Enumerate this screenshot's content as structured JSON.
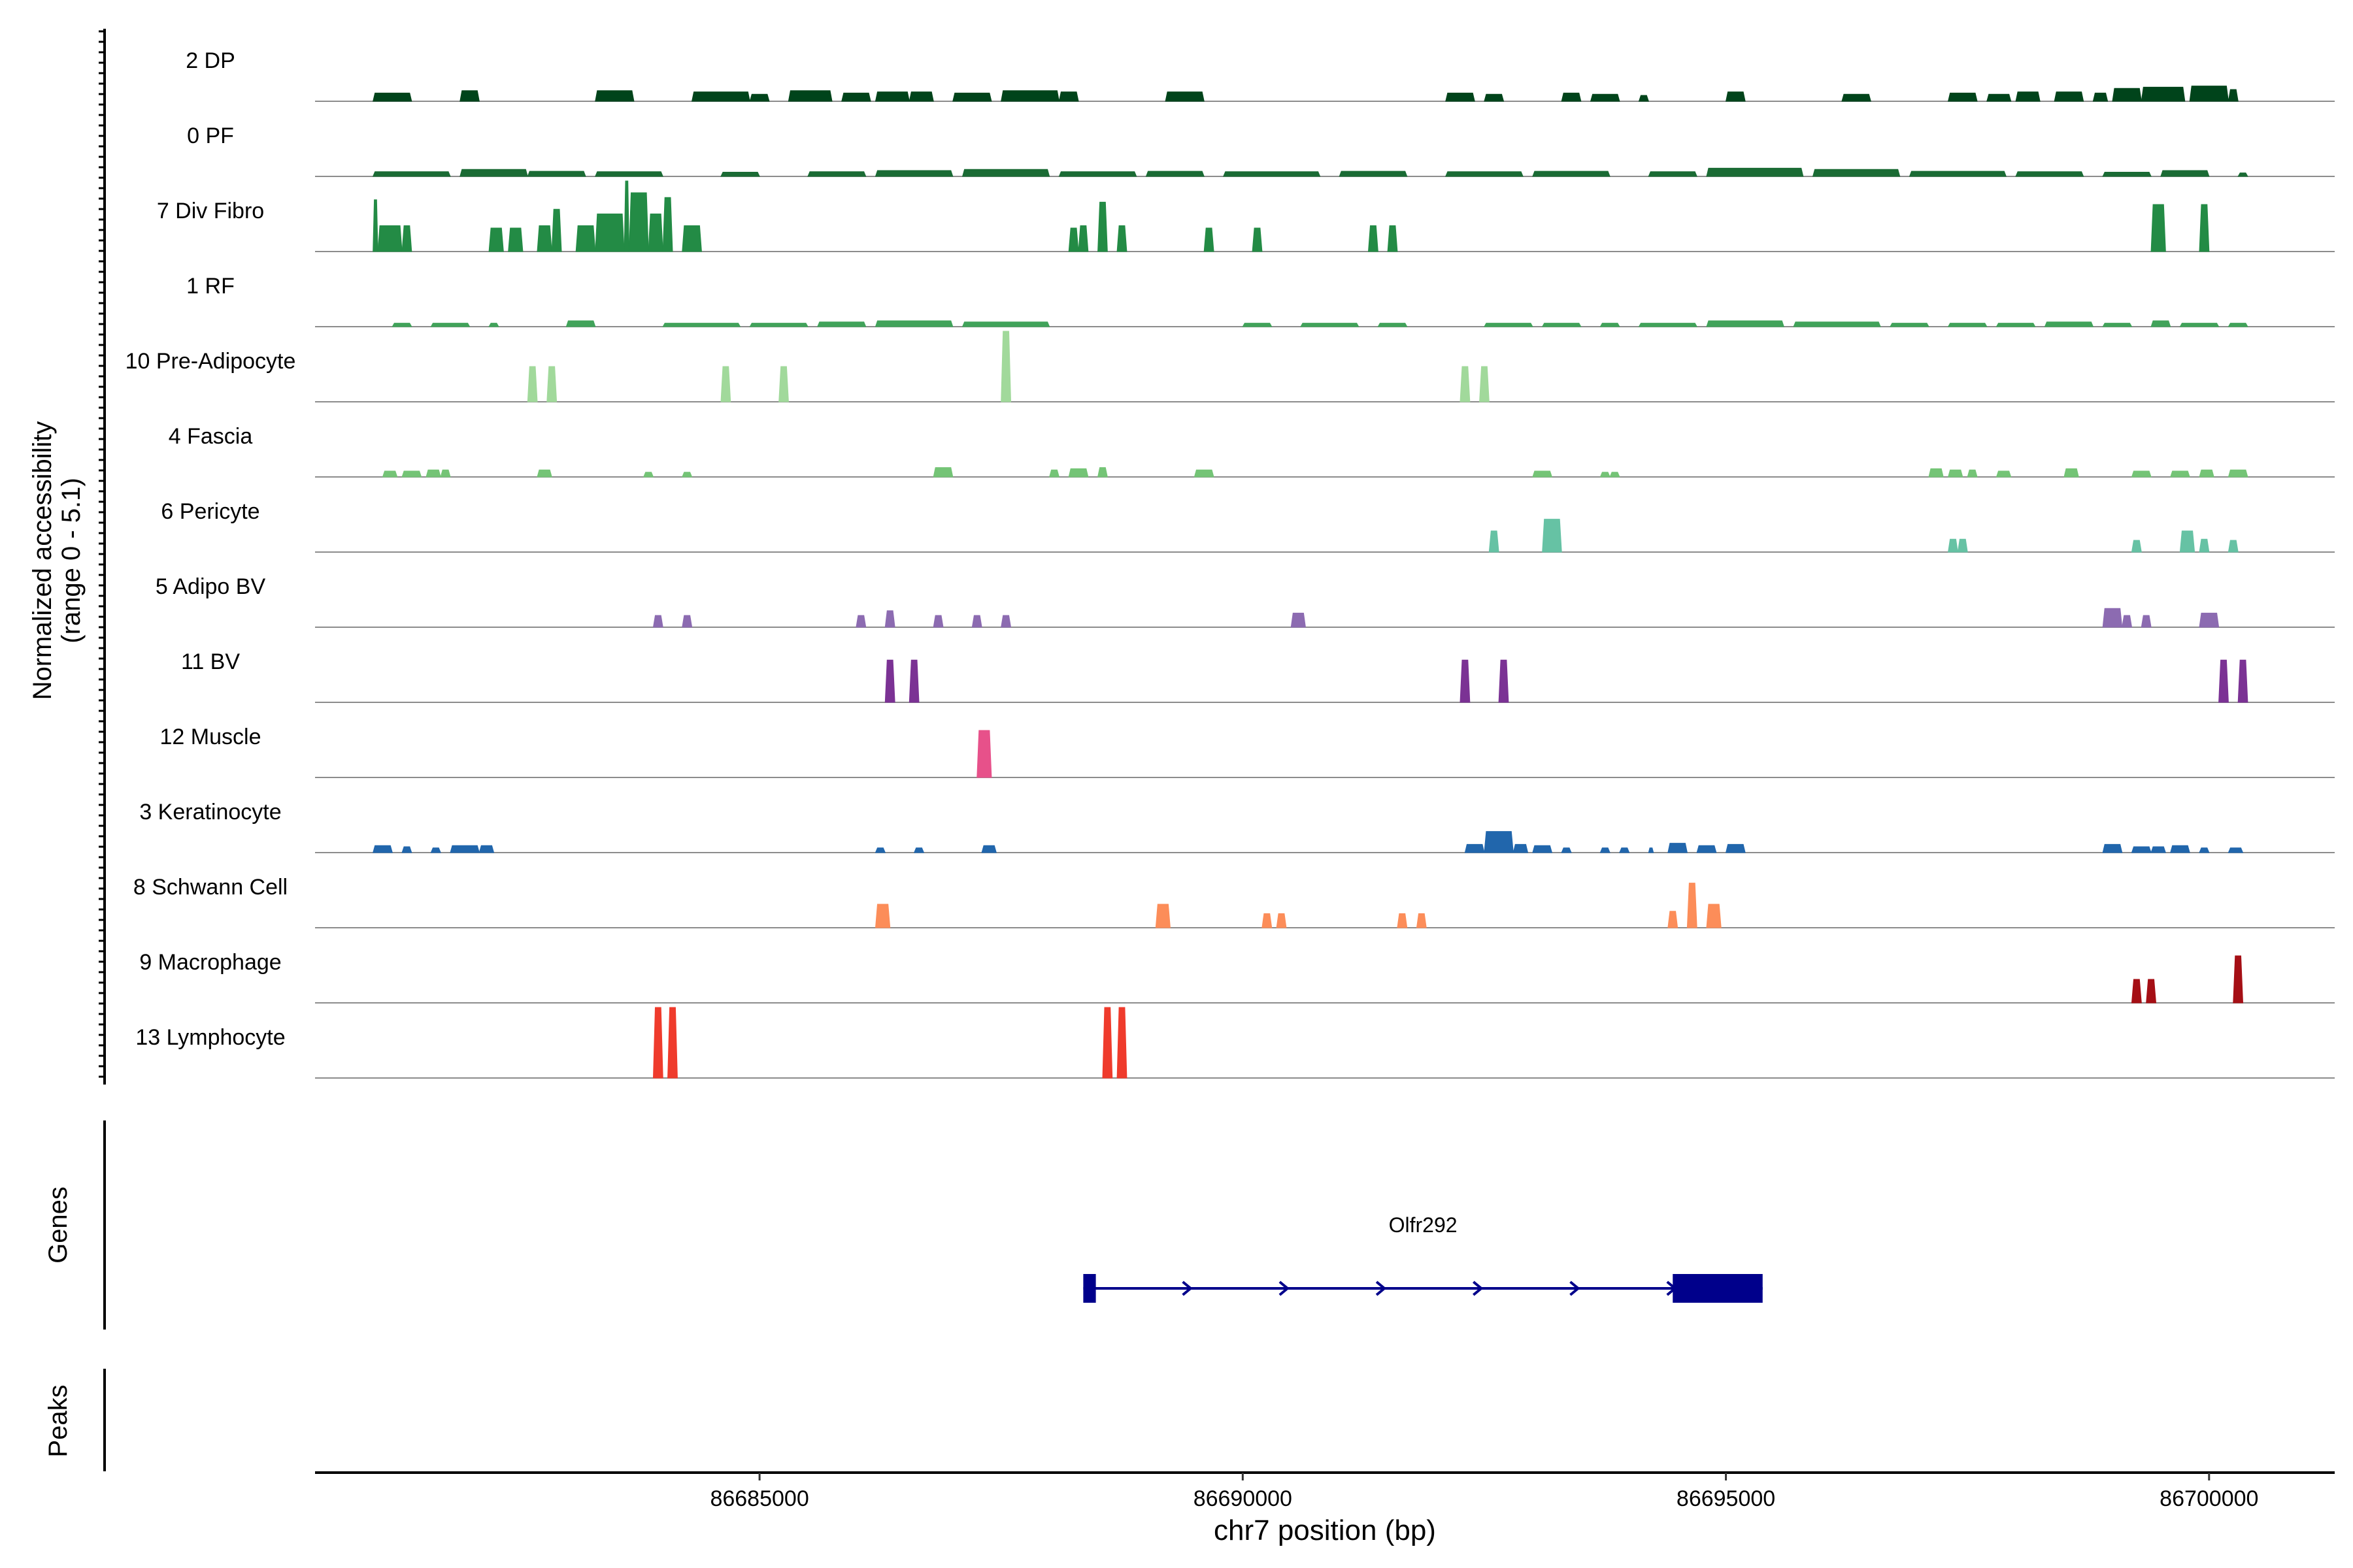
{
  "chart_data": {
    "type": "area",
    "title": "",
    "coverage_ylabel": "Normalized accessibility",
    "coverage_range_label": "(range 0 - 5.1)",
    "ylim": [
      0,
      5.1
    ],
    "xlabel": "chr7 position (bp)",
    "xlim": [
      86680400,
      86701300
    ],
    "x_ticks": [
      86685000,
      86690000,
      86695000,
      86700000
    ],
    "x_tick_labels": [
      "86685000",
      "86690000",
      "86695000",
      "86700000"
    ],
    "genes_label": "Genes",
    "peaks_label": "Peaks",
    "gene": {
      "name": "Olfr292",
      "strand": "+",
      "start": 86688350,
      "end": 86695380,
      "exons": [
        [
          86688350,
          86688480
        ],
        [
          86694450,
          86695380
        ]
      ]
    },
    "tracks": [
      {
        "name": "2 DP",
        "color": "#00441b",
        "segments": [
          [
            86681000,
            86681400,
            0.35
          ],
          [
            86681900,
            86682100,
            0.45
          ],
          [
            86683300,
            86683700,
            0.45
          ],
          [
            86684300,
            86684900,
            0.4
          ],
          [
            86684900,
            86685100,
            0.3
          ],
          [
            86685300,
            86685750,
            0.45
          ],
          [
            86685850,
            86686150,
            0.35
          ],
          [
            86686200,
            86686550,
            0.4
          ],
          [
            86686550,
            86686800,
            0.4
          ],
          [
            86687000,
            86687400,
            0.35
          ],
          [
            86687500,
            86688100,
            0.45
          ],
          [
            86688100,
            86688300,
            0.4
          ],
          [
            86689200,
            86689600,
            0.4
          ],
          [
            86692100,
            86692400,
            0.35
          ],
          [
            86692500,
            86692700,
            0.3
          ],
          [
            86693300,
            86693500,
            0.35
          ],
          [
            86693600,
            86693900,
            0.3
          ],
          [
            86694100,
            86694200,
            0.25
          ],
          [
            86695000,
            86695200,
            0.4
          ],
          [
            86696200,
            86696500,
            0.3
          ],
          [
            86697300,
            86697600,
            0.35
          ],
          [
            86697700,
            86697950,
            0.3
          ],
          [
            86698000,
            86698250,
            0.4
          ],
          [
            86698400,
            86698700,
            0.4
          ],
          [
            86698800,
            86698950,
            0.35
          ],
          [
            86699000,
            86699300,
            0.55
          ],
          [
            86699300,
            86699750,
            0.6
          ],
          [
            86699800,
            86700200,
            0.65
          ],
          [
            86700200,
            86700300,
            0.5
          ]
        ]
      },
      {
        "name": "0 PF",
        "color": "#1a6b34",
        "segments": [
          [
            86681000,
            86681800,
            0.2
          ],
          [
            86681900,
            86682600,
            0.3
          ],
          [
            86682600,
            86683200,
            0.22
          ],
          [
            86683300,
            86684000,
            0.2
          ],
          [
            86684600,
            86685000,
            0.18
          ],
          [
            86685500,
            86686100,
            0.2
          ],
          [
            86686200,
            86687000,
            0.25
          ],
          [
            86687100,
            86688000,
            0.3
          ],
          [
            86688100,
            86688900,
            0.2
          ],
          [
            86689000,
            86689600,
            0.22
          ],
          [
            86689800,
            86690800,
            0.2
          ],
          [
            86691000,
            86691700,
            0.22
          ],
          [
            86692100,
            86692900,
            0.2
          ],
          [
            86693000,
            86693800,
            0.22
          ],
          [
            86694200,
            86694700,
            0.2
          ],
          [
            86694800,
            86695800,
            0.35
          ],
          [
            86695900,
            86696800,
            0.3
          ],
          [
            86696900,
            86697900,
            0.22
          ],
          [
            86698000,
            86698700,
            0.2
          ],
          [
            86698900,
            86699400,
            0.18
          ],
          [
            86699500,
            86700000,
            0.25
          ],
          [
            86700300,
            86700400,
            0.15
          ]
        ]
      },
      {
        "name": "7 Div Fibro",
        "color": "#238b45",
        "segments": [
          [
            86681000,
            86681050,
            2.2
          ],
          [
            86681050,
            86681300,
            1.1
          ],
          [
            86681300,
            86681400,
            1.1
          ],
          [
            86682200,
            86682350,
            1.0
          ],
          [
            86682400,
            86682550,
            1.0
          ],
          [
            86682700,
            86682850,
            1.1
          ],
          [
            86682850,
            86682950,
            1.8
          ],
          [
            86683100,
            86683300,
            1.1
          ],
          [
            86683300,
            86683600,
            1.6
          ],
          [
            86683600,
            86683650,
            3.2
          ],
          [
            86683650,
            86683850,
            2.5
          ],
          [
            86683850,
            86684000,
            1.6
          ],
          [
            86684000,
            86684100,
            2.3
          ],
          [
            86684200,
            86684400,
            1.1
          ],
          [
            86688200,
            86688300,
            1.0
          ],
          [
            86688300,
            86688400,
            1.1
          ],
          [
            86688500,
            86688600,
            2.1
          ],
          [
            86688700,
            86688800,
            1.1
          ],
          [
            86689600,
            86689700,
            1.0
          ],
          [
            86690100,
            86690200,
            1.0
          ],
          [
            86691300,
            86691400,
            1.1
          ],
          [
            86691500,
            86691600,
            1.1
          ],
          [
            86699400,
            86699550,
            2.0
          ],
          [
            86699900,
            86700000,
            2.0
          ]
        ]
      },
      {
        "name": "1 RF",
        "color": "#41a35a",
        "segments": [
          [
            86681200,
            86681400,
            0.15
          ],
          [
            86681600,
            86682000,
            0.15
          ],
          [
            86682200,
            86682300,
            0.15
          ],
          [
            86683000,
            86683300,
            0.25
          ],
          [
            86684000,
            86684800,
            0.15
          ],
          [
            86684900,
            86685500,
            0.15
          ],
          [
            86685600,
            86686100,
            0.2
          ],
          [
            86686200,
            86687000,
            0.25
          ],
          [
            86687100,
            86688000,
            0.2
          ],
          [
            86690000,
            86690300,
            0.15
          ],
          [
            86690600,
            86691200,
            0.15
          ],
          [
            86691400,
            86691700,
            0.15
          ],
          [
            86692500,
            86693000,
            0.15
          ],
          [
            86693100,
            86693500,
            0.15
          ],
          [
            86693700,
            86693900,
            0.15
          ],
          [
            86694100,
            86694700,
            0.15
          ],
          [
            86694800,
            86695600,
            0.25
          ],
          [
            86695700,
            86696600,
            0.2
          ],
          [
            86696700,
            86697100,
            0.15
          ],
          [
            86697300,
            86697700,
            0.15
          ],
          [
            86697800,
            86698200,
            0.15
          ],
          [
            86698300,
            86698800,
            0.2
          ],
          [
            86698900,
            86699200,
            0.15
          ],
          [
            86699400,
            86699600,
            0.25
          ],
          [
            86699700,
            86700100,
            0.15
          ],
          [
            86700200,
            86700400,
            0.15
          ]
        ]
      },
      {
        "name": "10 Pre-Adipocyte",
        "color": "#a1d99b",
        "segments": [
          [
            86682600,
            86682700,
            1.5
          ],
          [
            86682800,
            86682900,
            1.5
          ],
          [
            86684600,
            86684700,
            1.5
          ],
          [
            86685200,
            86685300,
            1.5
          ],
          [
            86687500,
            86687600,
            3.0
          ],
          [
            86692250,
            86692350,
            1.5
          ],
          [
            86692450,
            86692550,
            1.5
          ]
        ]
      },
      {
        "name": "4 Fascia",
        "color": "#74c476",
        "segments": [
          [
            86681100,
            86681250,
            0.25
          ],
          [
            86681300,
            86681500,
            0.25
          ],
          [
            86681550,
            86681700,
            0.3
          ],
          [
            86681700,
            86681800,
            0.3
          ],
          [
            86682700,
            86682850,
            0.3
          ],
          [
            86683800,
            86683900,
            0.2
          ],
          [
            86684200,
            86684300,
            0.2
          ],
          [
            86686800,
            86687000,
            0.4
          ],
          [
            86688000,
            86688100,
            0.3
          ],
          [
            86688200,
            86688400,
            0.35
          ],
          [
            86688500,
            86688600,
            0.4
          ],
          [
            86689500,
            86689700,
            0.3
          ],
          [
            86693000,
            86693200,
            0.25
          ],
          [
            86693700,
            86693800,
            0.2
          ],
          [
            86693800,
            86693900,
            0.2
          ],
          [
            86697100,
            86697250,
            0.35
          ],
          [
            86697300,
            86697450,
            0.3
          ],
          [
            86697500,
            86697600,
            0.3
          ],
          [
            86697800,
            86697950,
            0.25
          ],
          [
            86698500,
            86698650,
            0.35
          ],
          [
            86699200,
            86699400,
            0.25
          ],
          [
            86699600,
            86699800,
            0.25
          ],
          [
            86699900,
            86700050,
            0.3
          ],
          [
            86700200,
            86700400,
            0.3
          ]
        ]
      },
      {
        "name": "6 Pericyte",
        "color": "#66c2a4",
        "segments": [
          [
            86692550,
            86692650,
            0.9
          ],
          [
            86693100,
            86693300,
            1.4
          ],
          [
            86697300,
            86697400,
            0.55
          ],
          [
            86697400,
            86697500,
            0.55
          ],
          [
            86699200,
            86699300,
            0.5
          ],
          [
            86699700,
            86699850,
            0.9
          ],
          [
            86699900,
            86700000,
            0.55
          ],
          [
            86700200,
            86700300,
            0.5
          ]
        ]
      },
      {
        "name": "5 Adipo BV",
        "color": "#8c6bb1",
        "segments": [
          [
            86683900,
            86684000,
            0.5
          ],
          [
            86684200,
            86684300,
            0.5
          ],
          [
            86686000,
            86686100,
            0.5
          ],
          [
            86686300,
            86686400,
            0.7
          ],
          [
            86686800,
            86686900,
            0.5
          ],
          [
            86687200,
            86687300,
            0.5
          ],
          [
            86687500,
            86687600,
            0.5
          ],
          [
            86690500,
            86690650,
            0.6
          ],
          [
            86698900,
            86699100,
            0.8
          ],
          [
            86699100,
            86699200,
            0.5
          ],
          [
            86699300,
            86699400,
            0.5
          ],
          [
            86699900,
            86700100,
            0.6
          ]
        ]
      },
      {
        "name": "11 BV",
        "color": "#7b3294",
        "segments": [
          [
            86686300,
            86686400,
            1.8
          ],
          [
            86686550,
            86686650,
            1.8
          ],
          [
            86692250,
            86692350,
            1.8
          ],
          [
            86692650,
            86692750,
            1.8
          ],
          [
            86700100,
            86700200,
            1.8
          ],
          [
            86700300,
            86700400,
            1.8
          ]
        ]
      },
      {
        "name": "12 Muscle",
        "color": "#e7518a",
        "segments": [
          [
            86687250,
            86687400,
            2.0
          ]
        ]
      },
      {
        "name": "3 Keratinocyte",
        "color": "#2166ac",
        "segments": [
          [
            86681000,
            86681200,
            0.3
          ],
          [
            86681300,
            86681400,
            0.25
          ],
          [
            86681600,
            86681700,
            0.2
          ],
          [
            86681800,
            86682100,
            0.3
          ],
          [
            86682100,
            86682250,
            0.3
          ],
          [
            86686200,
            86686300,
            0.2
          ],
          [
            86686600,
            86686700,
            0.2
          ],
          [
            86687300,
            86687450,
            0.3
          ],
          [
            86692300,
            86692500,
            0.35
          ],
          [
            86692500,
            86692800,
            0.9
          ],
          [
            86692800,
            86692950,
            0.35
          ],
          [
            86693000,
            86693200,
            0.3
          ],
          [
            86693300,
            86693400,
            0.2
          ],
          [
            86693700,
            86693800,
            0.2
          ],
          [
            86693900,
            86694000,
            0.2
          ],
          [
            86694200,
            86694250,
            0.2
          ],
          [
            86694400,
            86694600,
            0.4
          ],
          [
            86694700,
            86694900,
            0.3
          ],
          [
            86695000,
            86695200,
            0.35
          ],
          [
            86698900,
            86699100,
            0.35
          ],
          [
            86699200,
            86699400,
            0.25
          ],
          [
            86699400,
            86699550,
            0.25
          ],
          [
            86699600,
            86699800,
            0.3
          ],
          [
            86699900,
            86700000,
            0.2
          ],
          [
            86700200,
            86700350,
            0.2
          ]
        ]
      },
      {
        "name": "8 Schwann Cell",
        "color": "#fc8d59",
        "segments": [
          [
            86686200,
            86686350,
            1.0
          ],
          [
            86689100,
            86689250,
            1.0
          ],
          [
            86690200,
            86690300,
            0.6
          ],
          [
            86690350,
            86690450,
            0.6
          ],
          [
            86691600,
            86691700,
            0.6
          ],
          [
            86691800,
            86691900,
            0.6
          ],
          [
            86694400,
            86694500,
            0.7
          ],
          [
            86694600,
            86694700,
            1.9
          ],
          [
            86694800,
            86694950,
            1.0
          ]
        ]
      },
      {
        "name": "9 Macrophage",
        "color": "#a50f15",
        "segments": [
          [
            86699200,
            86699300,
            1.0
          ],
          [
            86699350,
            86699450,
            1.0
          ],
          [
            86700250,
            86700350,
            2.0
          ]
        ]
      },
      {
        "name": "13 Lymphocyte",
        "color": "#ef3b2c",
        "segments": [
          [
            86683900,
            86684000,
            3.2
          ],
          [
            86684050,
            86684150,
            3.2
          ],
          [
            86688550,
            86688650,
            3.2
          ],
          [
            86688700,
            86688800,
            3.2
          ]
        ]
      }
    ]
  }
}
